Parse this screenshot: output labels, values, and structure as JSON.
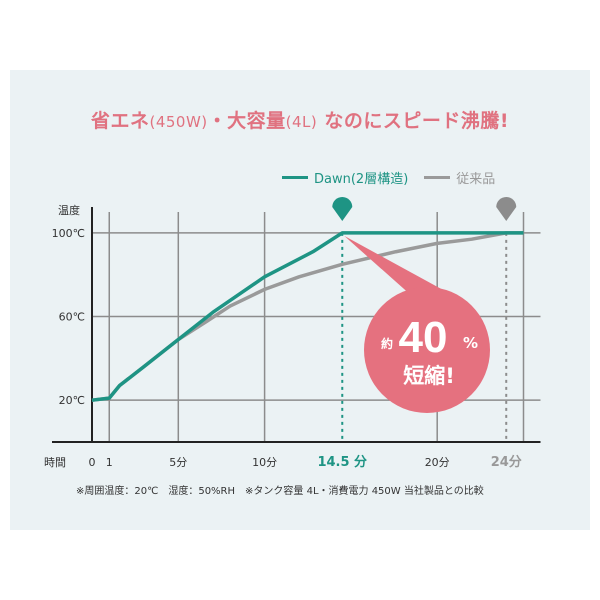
{
  "title": {
    "part1": "省エネ",
    "part2": "(450W)",
    "part3": "・大容量",
    "part4": "(4L)",
    "part5": " なのにスピード沸騰!"
  },
  "note": "※周囲温度：20℃　湿度：50%RH　※タンク容量 4L・消費電力 450W 当社製品との比較",
  "colors": {
    "title": "#e07280",
    "dawn": "#1e9484",
    "conventional": "#9a9a9a",
    "bubble": "#e5717f",
    "background": "#ebf2f4",
    "grid": "#8c8c8c"
  },
  "chart_data": {
    "type": "line",
    "ylabel": "温度",
    "xlabel": "時間",
    "xlim": [
      0,
      25
    ],
    "ylim": [
      0,
      110
    ],
    "grid": true,
    "legend_position": "top-right",
    "x_ticks": [
      {
        "value": 0,
        "label": "0"
      },
      {
        "value": 1,
        "label": "1"
      },
      {
        "value": 5,
        "label": "5分"
      },
      {
        "value": 10,
        "label": "10分"
      },
      {
        "value": 14.5,
        "label": "14.5 分",
        "highlight": "dawn"
      },
      {
        "value": 20,
        "label": "20分"
      },
      {
        "value": 24,
        "label": "24分",
        "highlight": "conventional"
      }
    ],
    "y_ticks": [
      {
        "value": 20,
        "label": "20℃"
      },
      {
        "value": 60,
        "label": "60℃"
      },
      {
        "value": 100,
        "label": "100℃"
      }
    ],
    "series": [
      {
        "name": "Dawn(2層構造)",
        "color": "#1e9484",
        "x": [
          0,
          1,
          1.6,
          3,
          5,
          7,
          10,
          12.8,
          14.5,
          25
        ],
        "y": [
          20,
          21,
          27,
          36,
          49,
          62,
          79,
          91,
          100,
          100
        ]
      },
      {
        "name": "従来品",
        "color": "#9a9a9a",
        "x": [
          0,
          1,
          1.6,
          3,
          5,
          6.7,
          8,
          10,
          12,
          14.5,
          17.6,
          20,
          22,
          24,
          25
        ],
        "y": [
          20,
          21,
          27,
          36,
          49,
          58,
          65,
          73,
          79,
          85,
          91,
          95,
          97,
          100,
          100
        ]
      }
    ],
    "markers": [
      {
        "x": 14.5,
        "series": "Dawn(2層構造)"
      },
      {
        "x": 24,
        "series": "従来品"
      }
    ],
    "annotation": {
      "prefix": "約",
      "value": "40",
      "unit": "%",
      "text": "短縮!"
    }
  }
}
